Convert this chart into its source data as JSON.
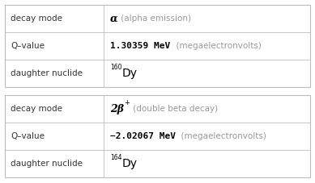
{
  "tables": [
    {
      "rows": [
        {
          "col1": "decay mode",
          "col2_parts": [
            {
              "text": "α",
              "style": "italic_bold",
              "color": "#000000"
            },
            {
              "text": " (alpha emission)",
              "style": "normal",
              "color": "#888888"
            }
          ]
        },
        {
          "col1": "Q–value",
          "col2_parts": [
            {
              "text": "1.30359 MeV",
              "style": "bold_mono",
              "color": "#000000"
            },
            {
              "text": "  (megaelectronvolts)",
              "style": "normal",
              "color": "#888888"
            }
          ]
        },
        {
          "col1": "daughter nuclide",
          "col2_parts": [
            {
              "text": "160",
              "style": "superscript",
              "color": "#000000"
            },
            {
              "text": "Dy",
              "style": "normal_large",
              "color": "#000000"
            }
          ]
        }
      ]
    },
    {
      "rows": [
        {
          "col1": "decay mode",
          "col2_parts": [
            {
              "text": "2β",
              "style": "italic_bold2",
              "color": "#000000"
            },
            {
              "text": "+",
              "style": "superscript_inline",
              "color": "#000000"
            },
            {
              "text": " (double beta decay)",
              "style": "normal",
              "color": "#888888"
            }
          ]
        },
        {
          "col1": "Q–value",
          "col2_parts": [
            {
              "text": "−2.02067 MeV",
              "style": "bold_mono",
              "color": "#000000"
            },
            {
              "text": "  (megaelectronvolts)",
              "style": "normal",
              "color": "#888888"
            }
          ]
        },
        {
          "col1": "daughter nuclide",
          "col2_parts": [
            {
              "text": "164",
              "style": "superscript",
              "color": "#000000"
            },
            {
              "text": "Dy",
              "style": "normal_large",
              "color": "#000000"
            }
          ]
        }
      ]
    }
  ],
  "bg_color": "#ffffff",
  "border_color": "#bbbbbb",
  "cell_bg_color": "#ffffff",
  "label_color": "#333333"
}
